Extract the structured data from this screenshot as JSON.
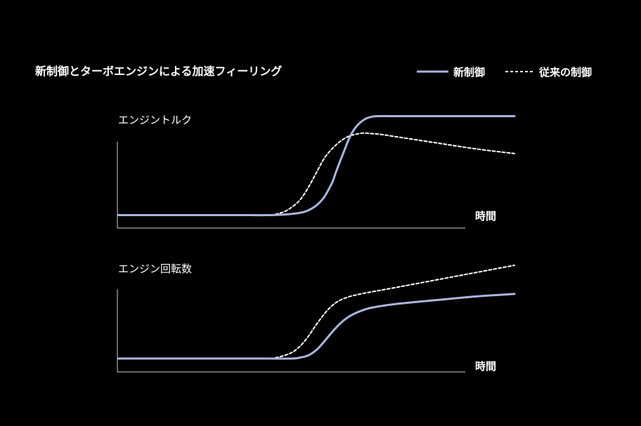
{
  "chart_data": {
    "type": "line",
    "title": "新制御とターボエンジンによる加速フィーリング",
    "legend": {
      "placement": "top-right",
      "entries": [
        {
          "name": "新制御",
          "style": "solid",
          "color": "#a9b6dc"
        },
        {
          "name": "従来の制御",
          "style": "dashed",
          "color": "#ffffff"
        }
      ]
    },
    "grid": false,
    "panels": [
      {
        "ylabel": "エンジントルク",
        "xlabel": "時間",
        "xlim": [
          0,
          100
        ],
        "ylim": [
          0,
          100
        ],
        "series": [
          {
            "name": "新制御",
            "style": "solid",
            "x": [
              0,
              10,
              20,
              30,
              38,
              42,
              46,
              48,
              50,
              52,
              54,
              55,
              57,
              58.5,
              60,
              62,
              64,
              66,
              70,
              80,
              90,
              100
            ],
            "y": [
              9,
              9,
              9,
              9,
              9,
              9.5,
              11,
              13,
              17,
              24,
              36,
              45,
              62,
              74,
              82,
              88,
              90.5,
              91,
              91,
              91,
              91,
              91
            ]
          },
          {
            "name": "従来の制御",
            "style": "dashed",
            "x": [
              0,
              10,
              20,
              30,
              38,
              40,
              42,
              44,
              46,
              48,
              50,
              52,
              54,
              56,
              58,
              60,
              62,
              64,
              66,
              70,
              80,
              90,
              100
            ],
            "y": [
              9,
              9,
              9,
              9,
              9,
              10,
              12,
              16,
              22,
              32,
              44,
              56,
              64,
              70,
              74,
              76,
              77,
              76.5,
              76,
              74,
              69,
              64,
              60
            ]
          }
        ]
      },
      {
        "ylabel": "エンジン回転数",
        "xlabel": "時間",
        "xlim": [
          0,
          100
        ],
        "ylim": [
          0,
          100
        ],
        "series": [
          {
            "name": "新制御",
            "style": "solid",
            "x": [
              0,
              10,
              20,
              30,
              38,
              44,
              46,
              48,
              50,
              52,
              54,
              56,
              58,
              60,
              62,
              64,
              68,
              74,
              80,
              90,
              100
            ],
            "y": [
              12,
              12,
              12,
              12,
              12,
              12,
              13,
              15,
              20,
              28,
              37,
              45,
              51,
              55,
              58,
              60,
              62.5,
              65,
              67,
              70.5,
              73
            ]
          },
          {
            "name": "従来の制御",
            "style": "dashed",
            "x": [
              0,
              10,
              20,
              30,
              38,
              40,
              42,
              44,
              46,
              48,
              50,
              52,
              54,
              56,
              58,
              60,
              64,
              70,
              80,
              90,
              100
            ],
            "y": [
              12,
              12,
              12,
              12,
              12,
              13,
              15,
              18,
              24,
              33,
              44,
              54,
              62,
              67,
              70,
              72,
              75,
              79,
              86,
              93,
              100
            ]
          }
        ]
      }
    ]
  }
}
